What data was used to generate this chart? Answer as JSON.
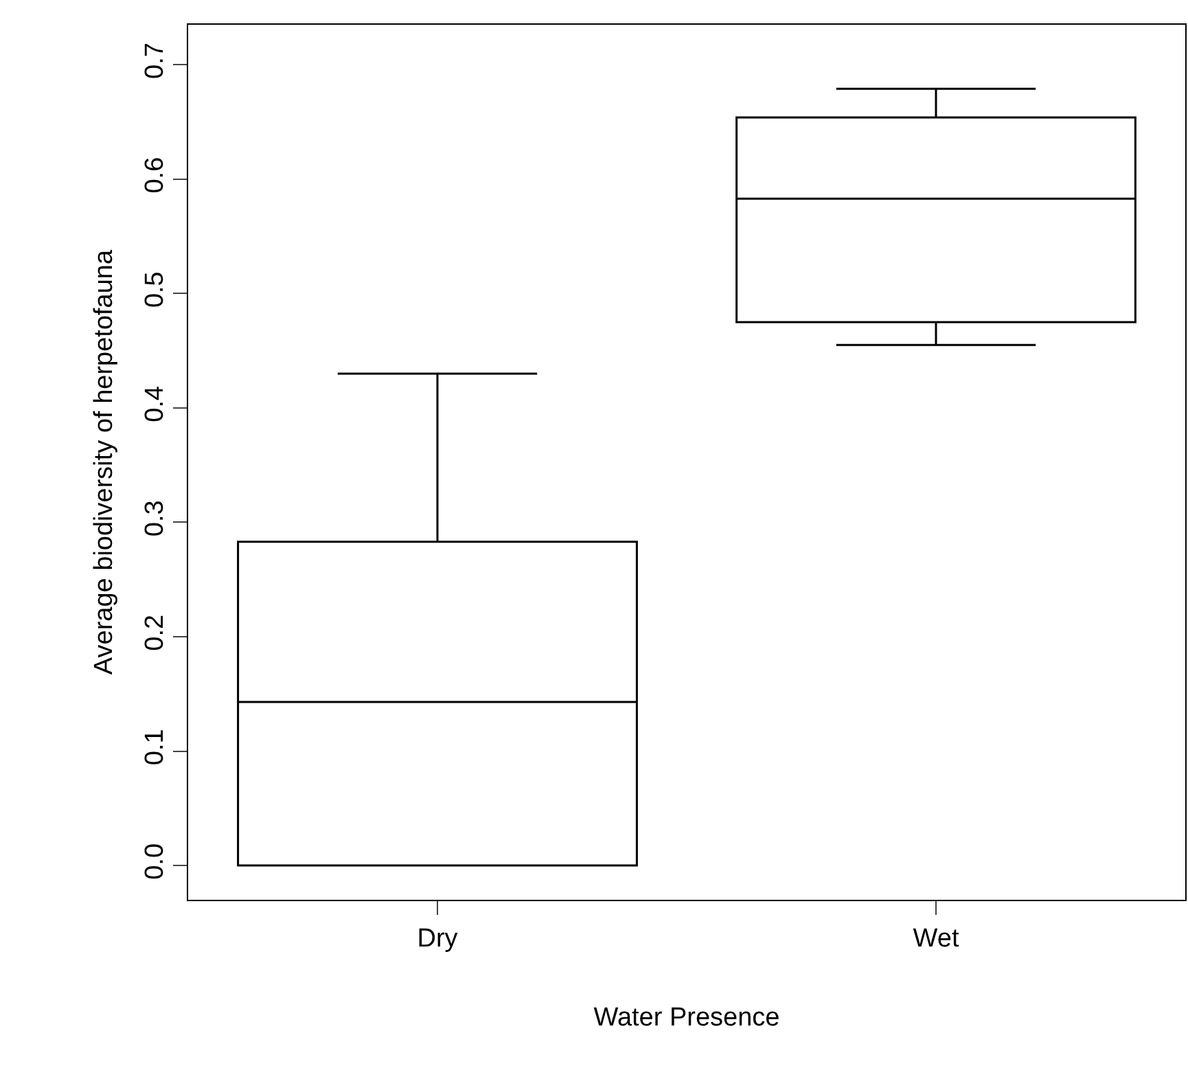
{
  "chart_data": {
    "type": "box",
    "xlabel": "Water Presence",
    "ylabel": "Average biodiversity of herpetofauna",
    "categories": [
      "Dry",
      "Wet"
    ],
    "boxes": [
      {
        "low": 0,
        "q1": 0,
        "median": 0.143,
        "q3": 0.283,
        "high": 0.43
      },
      {
        "low": 0.455,
        "q1": 0.475,
        "median": 0.583,
        "q3": 0.654,
        "high": 0.679
      }
    ],
    "ylim": [
      -0.03,
      0.735
    ],
    "yticks": [
      {
        "value": 0,
        "label": "0.0"
      },
      0.1,
      0.2,
      0.3,
      0.4,
      0.5,
      0.6,
      0.7
    ],
    "color": "#000000",
    "grid": false,
    "legend": false
  }
}
